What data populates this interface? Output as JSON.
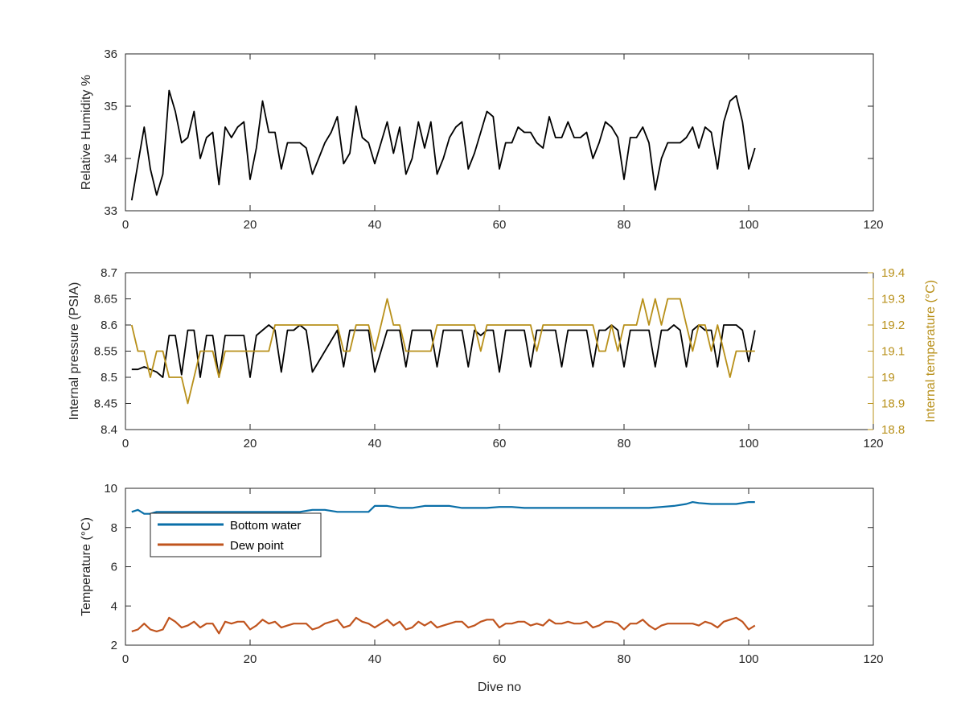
{
  "figure": {
    "background": "#ffffff",
    "axis_color": "#262626"
  },
  "chart_data": [
    {
      "type": "line",
      "id": "humidity",
      "ylabel": "Relative Humidity %",
      "xlim": [
        0,
        120
      ],
      "ylim": [
        33,
        36
      ],
      "xticks": [
        0,
        20,
        40,
        60,
        80,
        100,
        120
      ],
      "yticks": [
        33,
        34,
        35,
        36
      ],
      "series": [
        {
          "color": "#000000",
          "x": [
            1,
            2,
            3,
            4,
            5,
            6,
            7,
            8,
            9,
            10,
            11,
            12,
            13,
            14,
            15,
            16,
            17,
            18,
            19,
            20,
            21,
            22,
            23,
            24,
            25,
            26,
            27,
            28,
            29,
            30,
            31,
            32,
            33,
            34,
            35,
            36,
            37,
            38,
            39,
            40,
            41,
            42,
            43,
            44,
            45,
            46,
            47,
            48,
            49,
            50,
            51,
            52,
            53,
            54,
            55,
            56,
            57,
            58,
            59,
            60,
            61,
            62,
            63,
            64,
            65,
            66,
            67,
            68,
            69,
            70,
            71,
            72,
            73,
            74,
            75,
            76,
            77,
            78,
            79,
            80,
            81,
            82,
            83,
            84,
            85,
            86,
            87,
            88,
            89,
            90,
            91,
            92,
            93,
            94,
            95,
            96,
            97,
            98,
            99,
            100,
            101
          ],
          "values": [
            33.2,
            33.9,
            34.6,
            33.8,
            33.3,
            33.7,
            35.3,
            34.9,
            34.3,
            34.4,
            34.9,
            34.0,
            34.4,
            34.5,
            33.5,
            34.6,
            34.4,
            34.6,
            34.7,
            33.6,
            34.2,
            35.1,
            34.5,
            34.5,
            33.8,
            34.3,
            34.3,
            34.3,
            34.2,
            33.7,
            34.0,
            34.3,
            34.5,
            34.8,
            33.9,
            34.1,
            35.0,
            34.4,
            34.3,
            33.9,
            34.3,
            34.7,
            34.1,
            34.6,
            33.7,
            34.0,
            34.7,
            34.2,
            34.7,
            33.7,
            34.0,
            34.4,
            34.6,
            34.7,
            33.8,
            34.1,
            34.5,
            34.9,
            34.8,
            33.8,
            34.3,
            34.3,
            34.6,
            34.5,
            34.5,
            34.3,
            34.2,
            34.8,
            34.4,
            34.4,
            34.7,
            34.4,
            34.4,
            34.5,
            34.0,
            34.3,
            34.7,
            34.6,
            34.4,
            33.6,
            34.4,
            34.4,
            34.6,
            34.3,
            33.4,
            34.0,
            34.3,
            34.3,
            34.3,
            34.4,
            34.6,
            34.2,
            34.6,
            34.5,
            33.8,
            34.7,
            35.1,
            35.2,
            34.7,
            33.8,
            34.2
          ]
        }
      ]
    },
    {
      "type": "line",
      "id": "pressure",
      "ylabel": "Internal pressure (PSIA)",
      "y2label": "Internal temperature (°C)",
      "xlim": [
        0,
        120
      ],
      "ylim": [
        8.4,
        8.7
      ],
      "y2lim": [
        18.8,
        19.4
      ],
      "xticks": [
        0,
        20,
        40,
        60,
        80,
        100,
        120
      ],
      "yticks": [
        8.4,
        8.45,
        8.5,
        8.55,
        8.6,
        8.65,
        8.7
      ],
      "yticklabels": [
        "8.4",
        "8.45",
        "8.5",
        "8.55",
        "8.6",
        "8.65",
        "8.7"
      ],
      "y2ticks": [
        18.8,
        18.9,
        19.0,
        19.1,
        19.2,
        19.3,
        19.4
      ],
      "y2ticklabels": [
        "18.8",
        "18.9",
        "19",
        "19.1",
        "19.2",
        "19.3",
        "19.4"
      ],
      "left_axis_color": "#000000",
      "right_axis_color": "#b8901a",
      "series": [
        {
          "axis": "left",
          "color": "#000000",
          "x": [
            1,
            2,
            3,
            4,
            5,
            6,
            7,
            8,
            9,
            10,
            11,
            12,
            13,
            14,
            15,
            16,
            17,
            18,
            19,
            20,
            21,
            22,
            23,
            24,
            25,
            26,
            27,
            28,
            29,
            30,
            31,
            32,
            33,
            34,
            35,
            36,
            37,
            38,
            39,
            40,
            41,
            42,
            43,
            44,
            45,
            46,
            47,
            48,
            49,
            50,
            51,
            52,
            53,
            54,
            55,
            56,
            57,
            58,
            59,
            60,
            61,
            62,
            63,
            64,
            65,
            66,
            67,
            68,
            69,
            70,
            71,
            72,
            73,
            74,
            75,
            76,
            77,
            78,
            79,
            80,
            81,
            82,
            83,
            84,
            85,
            86,
            87,
            88,
            89,
            90,
            91,
            92,
            93,
            94,
            95,
            96,
            97,
            98,
            99,
            100,
            101
          ],
          "values": [
            8.515,
            8.515,
            8.52,
            8.515,
            8.51,
            8.5,
            8.58,
            8.58,
            8.505,
            8.59,
            8.59,
            8.5,
            8.58,
            8.58,
            8.5,
            8.58,
            8.58,
            8.58,
            8.58,
            8.5,
            8.58,
            8.59,
            8.6,
            8.59,
            8.51,
            8.59,
            8.59,
            8.6,
            8.59,
            8.51,
            8.53,
            8.55,
            8.57,
            8.59,
            8.52,
            8.59,
            8.59,
            8.59,
            8.59,
            8.51,
            8.55,
            8.59,
            8.59,
            8.59,
            8.52,
            8.59,
            8.59,
            8.59,
            8.59,
            8.52,
            8.59,
            8.59,
            8.59,
            8.59,
            8.52,
            8.59,
            8.58,
            8.59,
            8.59,
            8.51,
            8.59,
            8.59,
            8.59,
            8.59,
            8.52,
            8.59,
            8.59,
            8.59,
            8.59,
            8.52,
            8.59,
            8.59,
            8.59,
            8.59,
            8.52,
            8.59,
            8.59,
            8.6,
            8.59,
            8.52,
            8.59,
            8.59,
            8.59,
            8.59,
            8.52,
            8.59,
            8.59,
            8.6,
            8.59,
            8.52,
            8.59,
            8.6,
            8.59,
            8.59,
            8.52,
            8.6,
            8.6,
            8.6,
            8.59,
            8.53,
            8.59
          ]
        },
        {
          "axis": "right",
          "color": "#b8901a",
          "x": [
            1,
            2,
            3,
            4,
            5,
            6,
            7,
            8,
            9,
            10,
            11,
            12,
            13,
            14,
            15,
            16,
            17,
            18,
            19,
            20,
            21,
            22,
            23,
            24,
            25,
            26,
            27,
            28,
            29,
            30,
            31,
            32,
            33,
            34,
            35,
            36,
            37,
            38,
            39,
            40,
            41,
            42,
            43,
            44,
            45,
            46,
            47,
            48,
            49,
            50,
            51,
            52,
            53,
            54,
            55,
            56,
            57,
            58,
            59,
            60,
            61,
            62,
            63,
            64,
            65,
            66,
            67,
            68,
            69,
            70,
            71,
            72,
            73,
            74,
            75,
            76,
            77,
            78,
            79,
            80,
            81,
            82,
            83,
            84,
            85,
            86,
            87,
            88,
            89,
            90,
            91,
            92,
            93,
            94,
            95,
            96,
            97,
            98,
            99,
            100,
            101
          ],
          "values": [
            19.2,
            19.1,
            19.1,
            19.0,
            19.1,
            19.1,
            19.0,
            19.0,
            19.0,
            18.9,
            19.0,
            19.1,
            19.1,
            19.1,
            19.0,
            19.1,
            19.1,
            19.1,
            19.1,
            19.1,
            19.1,
            19.1,
            19.1,
            19.2,
            19.2,
            19.2,
            19.2,
            19.2,
            19.2,
            19.2,
            19.2,
            19.2,
            19.2,
            19.2,
            19.1,
            19.1,
            19.2,
            19.2,
            19.2,
            19.1,
            19.2,
            19.3,
            19.2,
            19.2,
            19.1,
            19.1,
            19.1,
            19.1,
            19.1,
            19.2,
            19.2,
            19.2,
            19.2,
            19.2,
            19.2,
            19.2,
            19.1,
            19.2,
            19.2,
            19.2,
            19.2,
            19.2,
            19.2,
            19.2,
            19.2,
            19.1,
            19.2,
            19.2,
            19.2,
            19.2,
            19.2,
            19.2,
            19.2,
            19.2,
            19.2,
            19.1,
            19.1,
            19.2,
            19.1,
            19.2,
            19.2,
            19.2,
            19.3,
            19.2,
            19.3,
            19.2,
            19.3,
            19.3,
            19.3,
            19.2,
            19.1,
            19.2,
            19.2,
            19.1,
            19.2,
            19.1,
            19.0,
            19.1,
            19.1,
            19.1,
            19.1
          ]
        }
      ]
    },
    {
      "type": "line",
      "id": "temperature",
      "ylabel": "Temperature (°C)",
      "xlabel": "Dive no",
      "xlim": [
        0,
        120
      ],
      "ylim": [
        2,
        10
      ],
      "xticks": [
        0,
        20,
        40,
        60,
        80,
        100,
        120
      ],
      "yticks": [
        2,
        4,
        6,
        8,
        10
      ],
      "legend": {
        "position": "top-left"
      },
      "series": [
        {
          "name": "Bottom water",
          "color": "#0a6fa8",
          "x": [
            1,
            2,
            3,
            4,
            5,
            6,
            7,
            8,
            9,
            10,
            12,
            14,
            16,
            18,
            20,
            22,
            24,
            26,
            28,
            30,
            32,
            34,
            36,
            38,
            39,
            40,
            42,
            44,
            46,
            48,
            50,
            52,
            54,
            56,
            58,
            60,
            62,
            64,
            66,
            68,
            70,
            72,
            74,
            76,
            78,
            80,
            82,
            84,
            86,
            88,
            90,
            91,
            92,
            94,
            96,
            98,
            100,
            101
          ],
          "values": [
            8.8,
            8.9,
            8.7,
            8.7,
            8.8,
            8.8,
            8.8,
            8.8,
            8.8,
            8.8,
            8.8,
            8.8,
            8.8,
            8.8,
            8.8,
            8.8,
            8.8,
            8.8,
            8.8,
            8.9,
            8.9,
            8.8,
            8.8,
            8.8,
            8.8,
            9.1,
            9.1,
            9.0,
            9.0,
            9.1,
            9.1,
            9.1,
            9.0,
            9.0,
            9.0,
            9.05,
            9.05,
            9.0,
            9.0,
            9.0,
            9.0,
            9.0,
            9.0,
            9.0,
            9.0,
            9.0,
            9.0,
            9.0,
            9.05,
            9.1,
            9.2,
            9.3,
            9.25,
            9.2,
            9.2,
            9.2,
            9.3,
            9.3
          ]
        },
        {
          "name": "Dew point",
          "color": "#c0541e",
          "x": [
            1,
            2,
            3,
            4,
            5,
            6,
            7,
            8,
            9,
            10,
            11,
            12,
            13,
            14,
            15,
            16,
            17,
            18,
            19,
            20,
            21,
            22,
            23,
            24,
            25,
            26,
            27,
            28,
            29,
            30,
            31,
            32,
            33,
            34,
            35,
            36,
            37,
            38,
            39,
            40,
            41,
            42,
            43,
            44,
            45,
            46,
            47,
            48,
            49,
            50,
            51,
            52,
            53,
            54,
            55,
            56,
            57,
            58,
            59,
            60,
            61,
            62,
            63,
            64,
            65,
            66,
            67,
            68,
            69,
            70,
            71,
            72,
            73,
            74,
            75,
            76,
            77,
            78,
            79,
            80,
            81,
            82,
            83,
            84,
            85,
            86,
            87,
            88,
            89,
            90,
            91,
            92,
            93,
            94,
            95,
            96,
            97,
            98,
            99,
            100,
            101
          ],
          "values": [
            2.7,
            2.8,
            3.1,
            2.8,
            2.7,
            2.8,
            3.4,
            3.2,
            2.9,
            3.0,
            3.2,
            2.9,
            3.1,
            3.1,
            2.6,
            3.2,
            3.1,
            3.2,
            3.2,
            2.8,
            3.0,
            3.3,
            3.1,
            3.2,
            2.9,
            3.0,
            3.1,
            3.1,
            3.1,
            2.8,
            2.9,
            3.1,
            3.2,
            3.3,
            2.9,
            3.0,
            3.4,
            3.2,
            3.1,
            2.9,
            3.1,
            3.3,
            3.0,
            3.2,
            2.8,
            2.9,
            3.2,
            3.0,
            3.2,
            2.9,
            3.0,
            3.1,
            3.2,
            3.2,
            2.9,
            3.0,
            3.2,
            3.3,
            3.3,
            2.9,
            3.1,
            3.1,
            3.2,
            3.2,
            3.0,
            3.1,
            3.0,
            3.3,
            3.1,
            3.1,
            3.2,
            3.1,
            3.1,
            3.2,
            2.9,
            3.0,
            3.2,
            3.2,
            3.1,
            2.8,
            3.1,
            3.1,
            3.3,
            3.0,
            2.8,
            3.0,
            3.1,
            3.1,
            3.1,
            3.1,
            3.1,
            3.0,
            3.2,
            3.1,
            2.9,
            3.2,
            3.3,
            3.4,
            3.2,
            2.8,
            3.0
          ]
        }
      ]
    }
  ]
}
